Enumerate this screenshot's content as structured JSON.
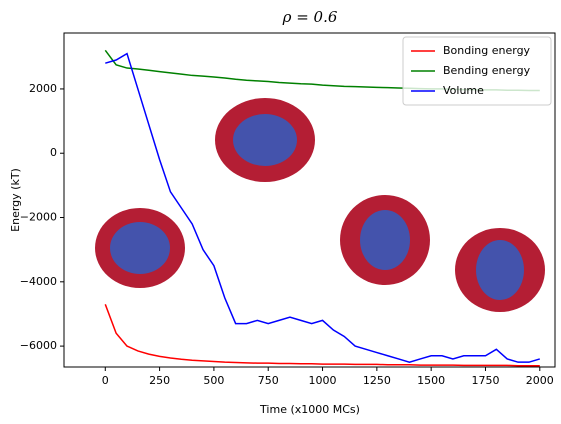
{
  "chart_data": {
    "type": "line",
    "title": "ρ = 0.6",
    "x_label": "Time (x1000 MCs)",
    "y_label": "Energy (kT)",
    "x": [
      0,
      50,
      100,
      150,
      200,
      250,
      300,
      350,
      400,
      450,
      500,
      550,
      600,
      650,
      700,
      750,
      800,
      850,
      900,
      950,
      1000,
      1050,
      1100,
      1150,
      1200,
      1250,
      1300,
      1350,
      1400,
      1450,
      1500,
      1550,
      1600,
      1650,
      1700,
      1750,
      1800,
      1850,
      1900,
      1950,
      2000
    ],
    "series": [
      {
        "name": "Bonding energy",
        "color": "#ff0000",
        "values": [
          -4700,
          -5600,
          -6000,
          -6150,
          -6250,
          -6320,
          -6370,
          -6410,
          -6440,
          -6460,
          -6480,
          -6500,
          -6510,
          -6520,
          -6530,
          -6530,
          -6540,
          -6540,
          -6550,
          -6550,
          -6560,
          -6560,
          -6560,
          -6570,
          -6570,
          -6570,
          -6580,
          -6580,
          -6580,
          -6590,
          -6590,
          -6590,
          -6590,
          -6600,
          -6600,
          -6600,
          -6600,
          -6600,
          -6610,
          -6610,
          -6610
        ]
      },
      {
        "name": "Bending energy",
        "color": "#008000",
        "values": [
          3200,
          2750,
          2650,
          2620,
          2580,
          2540,
          2500,
          2460,
          2420,
          2400,
          2370,
          2340,
          2300,
          2270,
          2250,
          2230,
          2200,
          2180,
          2160,
          2150,
          2120,
          2100,
          2080,
          2070,
          2060,
          2050,
          2040,
          2030,
          2020,
          2010,
          2000,
          2000,
          1990,
          1980,
          1980,
          1970,
          1970,
          1960,
          1960,
          1950,
          1950
        ]
      },
      {
        "name": "Volume",
        "color": "#0000ff",
        "values": [
          2800,
          2900,
          3100,
          2000,
          900,
          -200,
          -1200,
          -1700,
          -2200,
          -3000,
          -3500,
          -4500,
          -5300,
          -5300,
          -5200,
          -5300,
          -5200,
          -5100,
          -5200,
          -5300,
          -5200,
          -5500,
          -5700,
          -6000,
          -6100,
          -6200,
          -6300,
          -6400,
          -6500,
          -6400,
          -6300,
          -6300,
          -6400,
          -6300,
          -6300,
          -6300,
          -6100,
          -6400,
          -6500,
          -6500,
          -6400
        ]
      }
    ],
    "xlim": [
      -190,
      2070
    ],
    "ylim": [
      -6650,
      3740
    ],
    "xticks": [
      0,
      250,
      500,
      750,
      1000,
      1250,
      1500,
      1750,
      2000
    ],
    "yticks": [
      {
        "value": -6000,
        "label": "−6000"
      },
      {
        "value": -4000,
        "label": "−4000"
      },
      {
        "value": -2000,
        "label": "−2000"
      },
      0,
      2000
    ],
    "legend": "upper right"
  }
}
